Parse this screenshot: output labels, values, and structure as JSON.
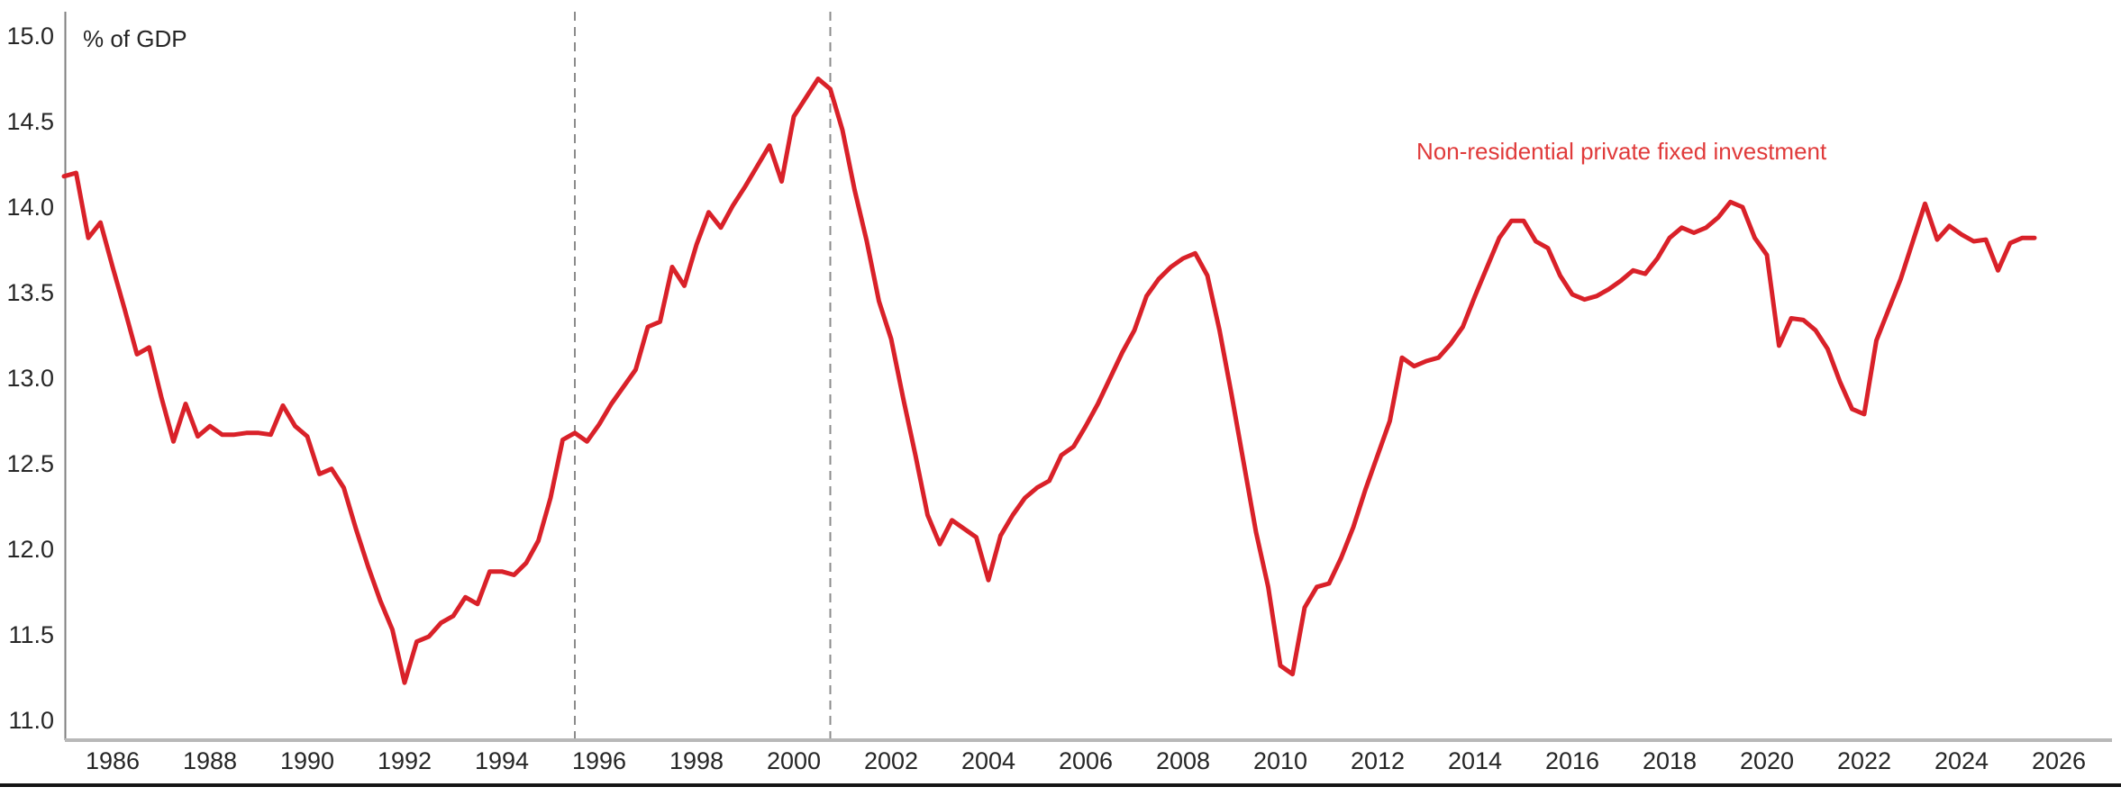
{
  "chart_data": {
    "type": "line",
    "title": "",
    "ylabel": "% of GDP",
    "xlabel": "",
    "grid": false,
    "legend_position": "inline-upper-right",
    "xlim": [
      1985,
      2026.35
    ],
    "ylim": [
      11.0,
      15.0
    ],
    "x_ticks": [
      1986,
      1988,
      1990,
      1992,
      1994,
      1996,
      1998,
      2000,
      2002,
      2004,
      2006,
      2008,
      2010,
      2012,
      2014,
      2016,
      2018,
      2020,
      2022,
      2024,
      2026
    ],
    "y_ticks": [
      15.0,
      14.5,
      14.0,
      13.5,
      13.0,
      12.5,
      12.0,
      11.5,
      11.0
    ],
    "reference_lines_x": [
      1995.5,
      2000.75
    ],
    "colors": {
      "line": "#d92129",
      "legend_text": "#e03a3a",
      "tick_text": "#262626",
      "y_spine": "#7f7f7f",
      "x_baseline": "#b8b8b8",
      "dashed_reference": "#8c8c8c",
      "page_rule": "#141414"
    },
    "series": [
      {
        "name": "Non-residential private fixed investment",
        "frequency": "quarterly",
        "start_year": 1985.0,
        "interval_years": 0.25,
        "values": [
          14.18,
          14.2,
          13.82,
          13.91,
          13.65,
          13.4,
          13.14,
          13.18,
          12.89,
          12.63,
          12.85,
          12.66,
          12.72,
          12.67,
          12.67,
          12.68,
          12.68,
          12.67,
          12.84,
          12.72,
          12.66,
          12.44,
          12.47,
          12.36,
          12.12,
          11.9,
          11.7,
          11.53,
          11.22,
          11.46,
          11.49,
          11.57,
          11.61,
          11.72,
          11.68,
          11.87,
          11.87,
          11.85,
          11.92,
          12.05,
          12.3,
          12.64,
          12.68,
          12.63,
          12.73,
          12.85,
          12.95,
          13.05,
          13.3,
          13.33,
          13.65,
          13.54,
          13.78,
          13.97,
          13.88,
          14.01,
          14.12,
          14.24,
          14.36,
          14.15,
          14.53,
          14.64,
          14.75,
          14.69,
          14.45,
          14.1,
          13.8,
          13.45,
          13.23,
          12.88,
          12.55,
          12.2,
          12.03,
          12.17,
          12.12,
          12.07,
          11.82,
          12.08,
          12.2,
          12.3,
          12.36,
          12.4,
          12.55,
          12.6,
          12.72,
          12.85,
          13.0,
          13.15,
          13.28,
          13.48,
          13.58,
          13.65,
          13.7,
          13.73,
          13.6,
          13.28,
          12.9,
          12.5,
          12.1,
          11.78,
          11.32,
          11.27,
          11.66,
          11.78,
          11.8,
          11.95,
          12.13,
          12.35,
          12.55,
          12.75,
          13.12,
          13.07,
          13.1,
          13.12,
          13.2,
          13.3,
          13.48,
          13.65,
          13.82,
          13.92,
          13.92,
          13.8,
          13.76,
          13.6,
          13.49,
          13.46,
          13.48,
          13.52,
          13.57,
          13.63,
          13.61,
          13.7,
          13.82,
          13.88,
          13.85,
          13.88,
          13.94,
          14.03,
          14.0,
          13.82,
          13.72,
          13.19,
          13.35,
          13.34,
          13.28,
          13.17,
          12.98,
          12.82,
          12.79,
          13.22,
          13.4,
          13.58,
          13.8,
          14.02,
          13.81,
          13.89,
          13.84,
          13.8,
          13.81,
          13.63,
          13.79,
          13.82,
          13.82
        ]
      }
    ]
  }
}
